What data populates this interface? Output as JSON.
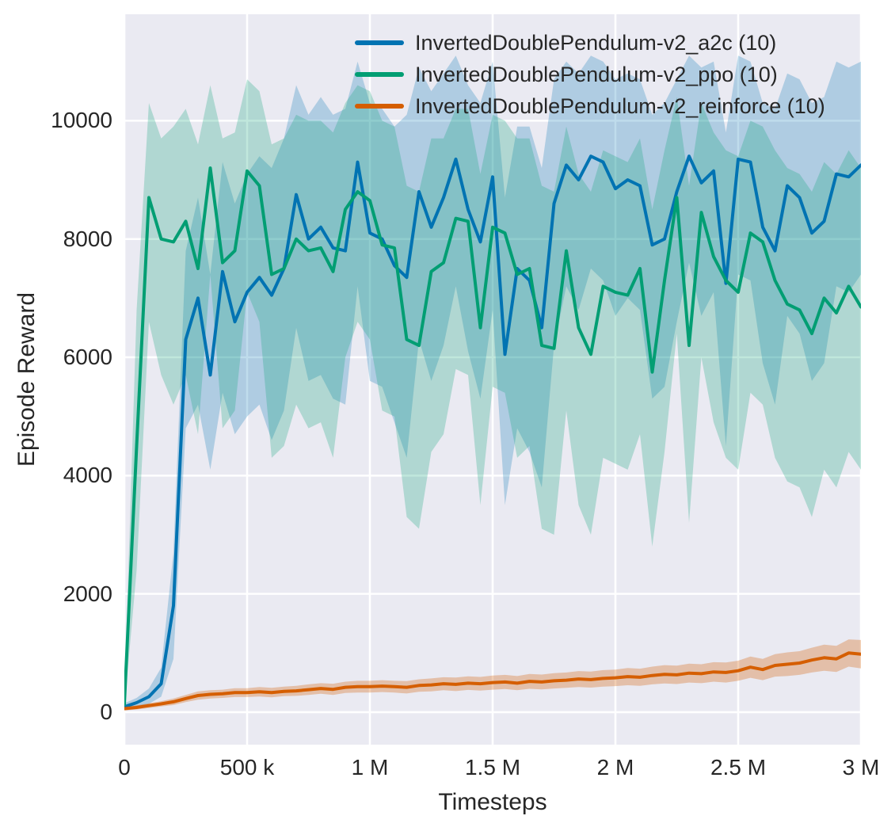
{
  "figure": {
    "xlabel": "Timesteps",
    "ylabel": "Episode Reward"
  },
  "colors": {
    "plot_background": "#eaeaf2",
    "figure_background": "#ffffff",
    "gridline": "#ffffff",
    "text": "#262626",
    "a2c": "#0173b2",
    "ppo": "#029e73",
    "reinforce": "#d55e00"
  },
  "axes": {
    "xlim": [
      0,
      3
    ],
    "ylim": [
      -550,
      11800
    ],
    "x_ticks": [
      {
        "value": 0,
        "label": "0"
      },
      {
        "value": 0.5,
        "label": "500 k"
      },
      {
        "value": 1,
        "label": "1 M"
      },
      {
        "value": 1.5,
        "label": "1.5 M"
      },
      {
        "value": 2,
        "label": "2 M"
      },
      {
        "value": 2.5,
        "label": "2.5 M"
      },
      {
        "value": 3,
        "label": "3 M"
      }
    ],
    "y_ticks": [
      {
        "value": 0,
        "label": "0"
      },
      {
        "value": 2000,
        "label": "2000"
      },
      {
        "value": 4000,
        "label": "4000"
      },
      {
        "value": 6000,
        "label": "6000"
      },
      {
        "value": 8000,
        "label": "8000"
      },
      {
        "value": 10000,
        "label": "10000"
      }
    ]
  },
  "chart_data": {
    "type": "line",
    "title": "",
    "xlabel": "Timesteps",
    "ylabel": "Episode Reward",
    "x_unit": "millions of timesteps",
    "xlim": [
      0,
      3
    ],
    "ylim": [
      -550,
      11800
    ],
    "grid": true,
    "legend_position": "upper center, no frame",
    "x": [
      0,
      0.05,
      0.1,
      0.15,
      0.2,
      0.25,
      0.3,
      0.35,
      0.4,
      0.45,
      0.5,
      0.55,
      0.6,
      0.65,
      0.7,
      0.75,
      0.8,
      0.85,
      0.9,
      0.95,
      1,
      1.05,
      1.1,
      1.15,
      1.2,
      1.25,
      1.3,
      1.35,
      1.4,
      1.45,
      1.5,
      1.55,
      1.6,
      1.65,
      1.7,
      1.75,
      1.8,
      1.85,
      1.9,
      1.95,
      2,
      2.05,
      2.1,
      2.15,
      2.2,
      2.25,
      2.3,
      2.35,
      2.4,
      2.45,
      2.5,
      2.55,
      2.6,
      2.65,
      2.7,
      2.75,
      2.8,
      2.85,
      2.9,
      2.95,
      3
    ],
    "series": [
      {
        "name": "InvertedDoublePendulum-v2_a2c (10)",
        "color": "#0173b2",
        "band_opacity": 0.25,
        "line_width": 4,
        "mean": [
          90,
          160,
          260,
          480,
          1800,
          6300,
          7000,
          5700,
          7450,
          6600,
          7100,
          7350,
          7050,
          7500,
          8750,
          8000,
          8200,
          7850,
          7800,
          9300,
          8100,
          8000,
          7550,
          7350,
          8800,
          8200,
          8700,
          9350,
          8500,
          7950,
          9050,
          6050,
          7500,
          7300,
          6500,
          8600,
          9250,
          9000,
          9400,
          9300,
          8850,
          9000,
          8900,
          7900,
          8000,
          8800,
          9400,
          8950,
          9150,
          7250,
          9350,
          9300,
          8200,
          7800,
          8900,
          8700,
          8100,
          8300,
          9100,
          9050,
          9250
        ],
        "band_low": [
          40,
          90,
          140,
          260,
          900,
          4800,
          5200,
          4100,
          5400,
          4700,
          5000,
          5200,
          4600,
          5100,
          6500,
          5600,
          5700,
          5300,
          5200,
          7200,
          5600,
          5500,
          4900,
          4300,
          6300,
          5600,
          6200,
          7200,
          6100,
          5300,
          6800,
          3500,
          4800,
          4400,
          3800,
          6200,
          7200,
          6800,
          7500,
          7300,
          6700,
          7000,
          6800,
          5300,
          5500,
          6600,
          7600,
          6700,
          7100,
          4500,
          7400,
          7300,
          5900,
          5200,
          6700,
          6400,
          5600,
          5900,
          7200,
          7100,
          7400
        ],
        "band_high": [
          150,
          240,
          400,
          750,
          2700,
          7800,
          8700,
          7400,
          9300,
          8600,
          9100,
          9400,
          9200,
          9700,
          10600,
          10100,
          10400,
          10100,
          10200,
          11000,
          10300,
          10200,
          9900,
          10100,
          10900,
          10500,
          10800,
          11100,
          10600,
          10300,
          11000,
          8700,
          9900,
          9900,
          9200,
          10700,
          11000,
          10800,
          11100,
          11000,
          10700,
          10800,
          10700,
          10100,
          10300,
          10700,
          11100,
          10900,
          11000,
          9800,
          11100,
          11000,
          10300,
          10200,
          10800,
          10700,
          10300,
          10400,
          11000,
          10900,
          11000
        ]
      },
      {
        "name": "InvertedDoublePendulum-v2_ppo (10)",
        "color": "#029e73",
        "band_opacity": 0.25,
        "line_width": 4,
        "mean": [
          130,
          4500,
          8700,
          8000,
          7950,
          8300,
          7500,
          9200,
          7600,
          7800,
          9150,
          8900,
          7400,
          7500,
          8000,
          7800,
          7850,
          7450,
          8500,
          8800,
          8650,
          7900,
          7850,
          6300,
          6200,
          7450,
          7600,
          8350,
          8300,
          6500,
          8200,
          8100,
          7400,
          7500,
          6200,
          6150,
          7800,
          6500,
          6050,
          7200,
          7100,
          7050,
          7500,
          5750,
          7300,
          8700,
          6200,
          8450,
          7700,
          7300,
          7100,
          8100,
          7950,
          7300,
          6900,
          6800,
          6400,
          7000,
          6750,
          7200,
          6850
        ],
        "band_low": [
          60,
          2400,
          6600,
          5700,
          5200,
          5700,
          4700,
          7400,
          4800,
          5100,
          7100,
          6600,
          4300,
          4500,
          5200,
          4800,
          4900,
          4300,
          6000,
          6600,
          6300,
          5100,
          5000,
          3300,
          3100,
          4400,
          4700,
          5800,
          5700,
          3500,
          5500,
          5400,
          4300,
          4500,
          3100,
          3000,
          5100,
          3500,
          3000,
          4300,
          4200,
          4100,
          4700,
          2800,
          4400,
          6400,
          3200,
          6000,
          4900,
          4300,
          4100,
          5400,
          5200,
          4300,
          3900,
          3800,
          3300,
          4100,
          3800,
          4400,
          4100
        ],
        "band_high": [
          250,
          6800,
          10300,
          9700,
          9900,
          10200,
          9600,
          10600,
          9700,
          9800,
          10700,
          10500,
          9600,
          9700,
          10100,
          10000,
          10000,
          9800,
          10300,
          10600,
          10500,
          10000,
          9900,
          8900,
          8800,
          9700,
          9700,
          10200,
          10200,
          9100,
          10100,
          10000,
          9700,
          9700,
          8900,
          8800,
          9900,
          9100,
          8800,
          9500,
          9400,
          9300,
          9700,
          8500,
          9500,
          10400,
          8900,
          10300,
          9800,
          9500,
          9400,
          10000,
          9900,
          9500,
          9200,
          9100,
          8800,
          9300,
          9100,
          9500,
          9200
        ]
      },
      {
        "name": "InvertedDoublePendulum-v2_reinforce (10)",
        "color": "#d55e00",
        "band_opacity": 0.3,
        "line_width": 4,
        "mean": [
          60,
          80,
          110,
          140,
          175,
          230,
          280,
          300,
          310,
          330,
          330,
          345,
          330,
          350,
          360,
          380,
          400,
          385,
          420,
          430,
          430,
          440,
          430,
          420,
          450,
          460,
          480,
          470,
          490,
          480,
          500,
          510,
          490,
          520,
          510,
          530,
          540,
          560,
          550,
          570,
          580,
          600,
          590,
          620,
          640,
          630,
          660,
          650,
          680,
          670,
          700,
          760,
          720,
          790,
          810,
          830,
          880,
          920,
          900,
          1000,
          980
        ],
        "band_low": [
          30,
          45,
          70,
          95,
          120,
          170,
          210,
          230,
          240,
          255,
          255,
          265,
          250,
          270,
          275,
          290,
          310,
          290,
          325,
          330,
          330,
          340,
          330,
          315,
          345,
          350,
          370,
          355,
          375,
          365,
          380,
          390,
          370,
          395,
          385,
          400,
          410,
          425,
          415,
          430,
          440,
          455,
          445,
          470,
          485,
          475,
          500,
          490,
          515,
          500,
          530,
          580,
          540,
          600,
          610,
          630,
          670,
          700,
          680,
          770,
          740
        ],
        "band_high": [
          90,
          115,
          150,
          185,
          230,
          290,
          350,
          370,
          380,
          405,
          405,
          425,
          410,
          430,
          445,
          470,
          490,
          480,
          515,
          530,
          530,
          540,
          530,
          525,
          555,
          570,
          590,
          585,
          605,
          595,
          620,
          630,
          610,
          645,
          635,
          660,
          670,
          695,
          685,
          710,
          720,
          745,
          735,
          770,
          795,
          785,
          820,
          810,
          845,
          840,
          870,
          940,
          900,
          980,
          1010,
          1030,
          1090,
          1140,
          1120,
          1230,
          1220
        ]
      }
    ]
  }
}
